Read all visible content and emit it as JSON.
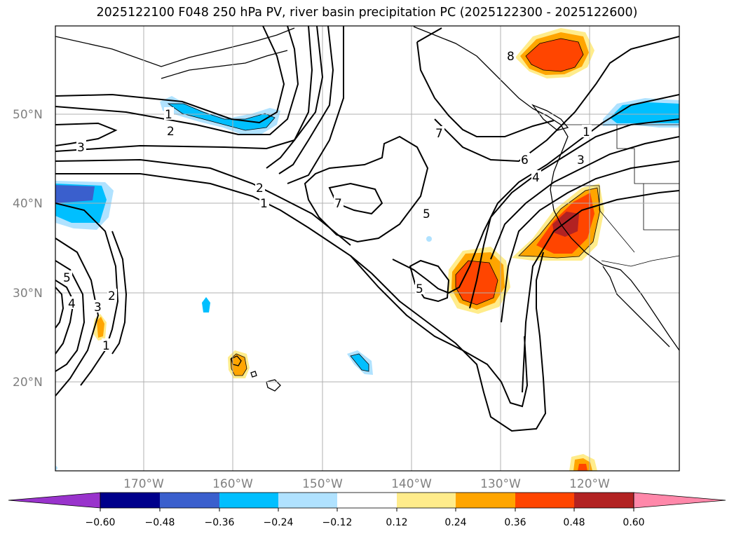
{
  "title": "2025122100 F048 250 hPa PV, river basin precipitation PC (2025122300 - 2025122600)",
  "lat_labels": [
    "50°N",
    "40°N",
    "30°N",
    "20°N"
  ],
  "lon_labels": [
    "170°W",
    "160°W",
    "150°W",
    "140°W",
    "130°W",
    "120°W"
  ],
  "contour_labels": [
    "1",
    "2",
    "3",
    "1",
    "2",
    "7",
    "7",
    "6",
    "5",
    "4",
    "3",
    "1",
    "8",
    "5",
    "4",
    "3",
    "2",
    "1",
    "5"
  ],
  "colorbar": {
    "labels": [
      "−0.60",
      "−0.48",
      "−0.36",
      "−0.24",
      "−0.12",
      "0.12",
      "0.24",
      "0.36",
      "0.48",
      "0.60"
    ],
    "colors": [
      "#9933cc",
      "#00008b",
      "#3a5fcd",
      "#00bfff",
      "#b0e2ff",
      "#ffffff",
      "#ffec8b",
      "#ffa500",
      "#ff4500",
      "#b22222",
      "#ff88aa"
    ]
  },
  "colors": {
    "grid": "#b0b0b0",
    "contour": "#000000",
    "tick": "#808080"
  }
}
